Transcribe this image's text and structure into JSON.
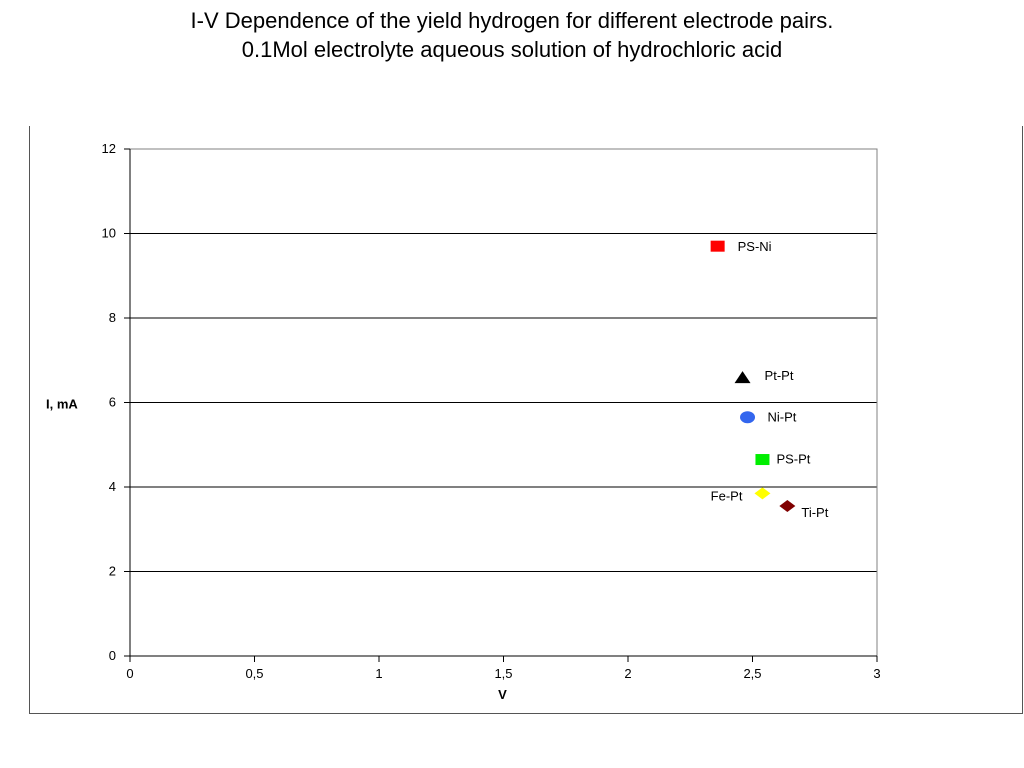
{
  "title_line1": "I-V Dependence of  the yield hydrogen  for different electrode pairs.",
  "title_line2": "0.1Mol electrolyte aqueous solution of hydrochloric acid",
  "chart_data": {
    "type": "scatter",
    "xlabel": "V",
    "ylabel": "I, mA",
    "xlim": [
      0,
      3
    ],
    "ylim": [
      0,
      12
    ],
    "x_ticks": [
      "0",
      "0,5",
      "1",
      "1,5",
      "2",
      "2,5",
      "3"
    ],
    "y_ticks": [
      "0",
      "2",
      "4",
      "6",
      "8",
      "10",
      "12"
    ],
    "grid": "horizontal",
    "series": [
      {
        "name": "PS-Ni",
        "x": 2.36,
        "y": 9.7,
        "marker": "square",
        "color": "#ff0000"
      },
      {
        "name": "Pt-Pt",
        "x": 2.46,
        "y": 6.6,
        "marker": "triangle",
        "color": "#000000"
      },
      {
        "name": "Ni-Pt",
        "x": 2.48,
        "y": 5.65,
        "marker": "circle",
        "color": "#3366ee"
      },
      {
        "name": "PS-Pt",
        "x": 2.54,
        "y": 4.65,
        "marker": "square",
        "color": "#00ee00"
      },
      {
        "name": "Fe-Pt",
        "x": 2.54,
        "y": 3.85,
        "marker": "diamond",
        "color": "#ffff00"
      },
      {
        "name": "Ti-Pt",
        "x": 2.64,
        "y": 3.55,
        "marker": "diamond",
        "color": "#800000"
      }
    ]
  }
}
